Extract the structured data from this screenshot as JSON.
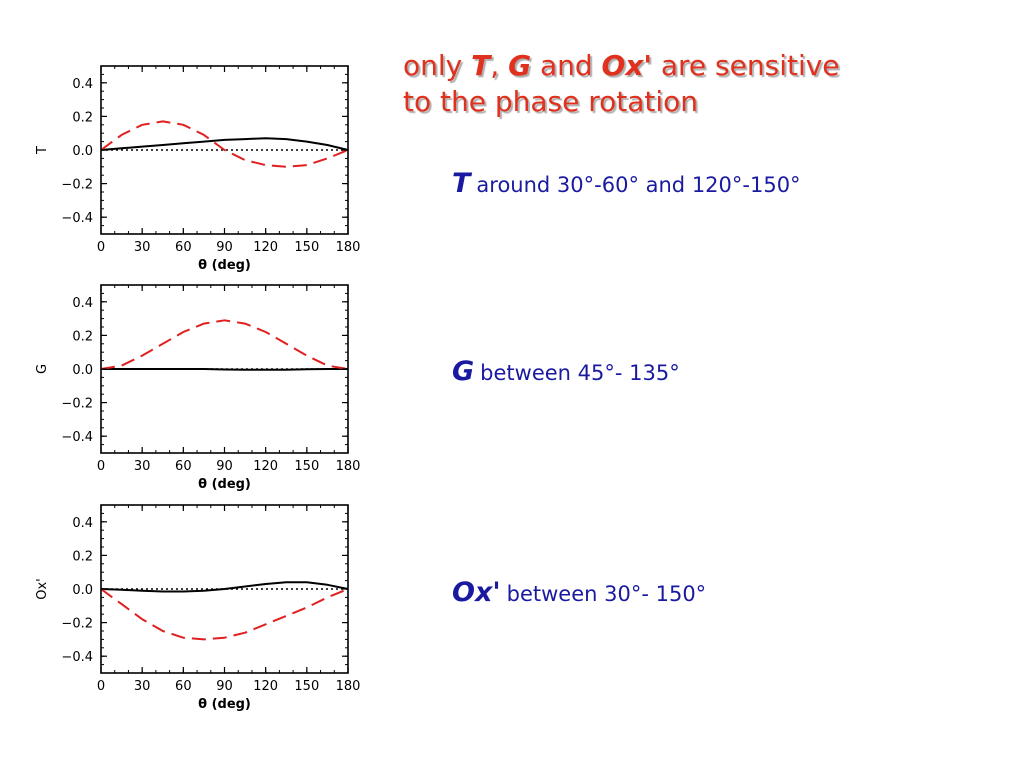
{
  "title": {
    "line1_pre": "only ",
    "t": "T",
    "comma": ", ",
    "g": "G",
    "and": " and ",
    "ox": "Ox'",
    "line1_post": " are sensitive",
    "line2": "to the phase rotation"
  },
  "notes": {
    "t": {
      "symbol": "T",
      "text": "around 30°-60°  and  120°-150°"
    },
    "g": {
      "symbol": "G",
      "text": "between 45°- 135°"
    },
    "ox": {
      "symbol": "Ox'",
      "text": "between 30°- 150°"
    }
  },
  "colors": {
    "text_blue": "#1a1aa0",
    "title_red": "#e0301e",
    "dashed_series": "#e02020",
    "solid_series": "#000000"
  },
  "chart_data": [
    {
      "type": "line",
      "title": "",
      "xlabel": "θ (deg)",
      "ylabel": "T",
      "xlim": [
        0,
        180
      ],
      "ylim": [
        -0.5,
        0.5
      ],
      "xticks": [
        0,
        30,
        60,
        90,
        120,
        150,
        180
      ],
      "yticks": [
        -0.4,
        -0.2,
        0.0,
        0.2,
        0.4
      ],
      "ytick_labels": [
        "−0.4",
        "−0.2",
        "0.0",
        "0.2",
        "0.4"
      ],
      "reference_line": {
        "y": 0.0,
        "style": "dotted"
      },
      "series": [
        {
          "style": "solid",
          "color": "#000000",
          "x": [
            0,
            15,
            30,
            45,
            60,
            75,
            90,
            105,
            120,
            135,
            150,
            165,
            180
          ],
          "y": [
            0.0,
            0.01,
            0.02,
            0.03,
            0.04,
            0.05,
            0.06,
            0.065,
            0.07,
            0.065,
            0.05,
            0.03,
            0.0
          ]
        },
        {
          "style": "dashed",
          "color": "#e02020",
          "x": [
            0,
            15,
            30,
            45,
            60,
            75,
            90,
            105,
            120,
            135,
            150,
            165,
            180
          ],
          "y": [
            0.0,
            0.09,
            0.15,
            0.17,
            0.15,
            0.09,
            0.0,
            -0.06,
            -0.09,
            -0.1,
            -0.09,
            -0.05,
            0.0
          ]
        }
      ]
    },
    {
      "type": "line",
      "title": "",
      "xlabel": "θ (deg)",
      "ylabel": "G",
      "xlim": [
        0,
        180
      ],
      "ylim": [
        -0.5,
        0.5
      ],
      "xticks": [
        0,
        30,
        60,
        90,
        120,
        150,
        180
      ],
      "yticks": [
        -0.4,
        -0.2,
        0.0,
        0.2,
        0.4
      ],
      "ytick_labels": [
        "−0.4",
        "−0.2",
        "0.0",
        "0.2",
        "0.4"
      ],
      "reference_line": {
        "y": 0.0,
        "style": "dotted"
      },
      "series": [
        {
          "style": "solid",
          "color": "#000000",
          "x": [
            0,
            15,
            30,
            45,
            60,
            75,
            90,
            105,
            120,
            135,
            150,
            165,
            180
          ],
          "y": [
            0.0,
            0.0,
            0.0,
            0.0,
            0.0,
            0.0,
            -0.003,
            -0.005,
            -0.005,
            -0.004,
            -0.002,
            0.0,
            0.0
          ]
        },
        {
          "style": "dashed",
          "color": "#e02020",
          "x": [
            0,
            15,
            30,
            45,
            60,
            75,
            90,
            105,
            120,
            135,
            150,
            165,
            180
          ],
          "y": [
            0.0,
            0.02,
            0.08,
            0.15,
            0.22,
            0.27,
            0.29,
            0.27,
            0.22,
            0.15,
            0.08,
            0.02,
            0.0
          ]
        }
      ]
    },
    {
      "type": "line",
      "title": "",
      "xlabel": "θ (deg)",
      "ylabel": "Ox'",
      "xlim": [
        0,
        180
      ],
      "ylim": [
        -0.5,
        0.5
      ],
      "xticks": [
        0,
        30,
        60,
        90,
        120,
        150,
        180
      ],
      "yticks": [
        -0.4,
        -0.2,
        0.0,
        0.2,
        0.4
      ],
      "ytick_labels": [
        "−0.4",
        "−0.2",
        "0.0",
        "0.2",
        "0.4"
      ],
      "reference_line": {
        "y": 0.0,
        "style": "dotted"
      },
      "series": [
        {
          "style": "solid",
          "color": "#000000",
          "x": [
            0,
            15,
            30,
            45,
            60,
            75,
            90,
            105,
            120,
            135,
            150,
            165,
            180
          ],
          "y": [
            0.0,
            -0.005,
            -0.01,
            -0.015,
            -0.015,
            -0.01,
            0.0,
            0.015,
            0.03,
            0.04,
            0.04,
            0.025,
            0.0
          ]
        },
        {
          "style": "dashed",
          "color": "#e02020",
          "x": [
            0,
            15,
            30,
            45,
            60,
            75,
            90,
            105,
            120,
            135,
            150,
            165,
            180
          ],
          "y": [
            0.0,
            -0.09,
            -0.18,
            -0.25,
            -0.29,
            -0.3,
            -0.29,
            -0.26,
            -0.21,
            -0.16,
            -0.11,
            -0.05,
            0.0
          ]
        }
      ]
    }
  ]
}
